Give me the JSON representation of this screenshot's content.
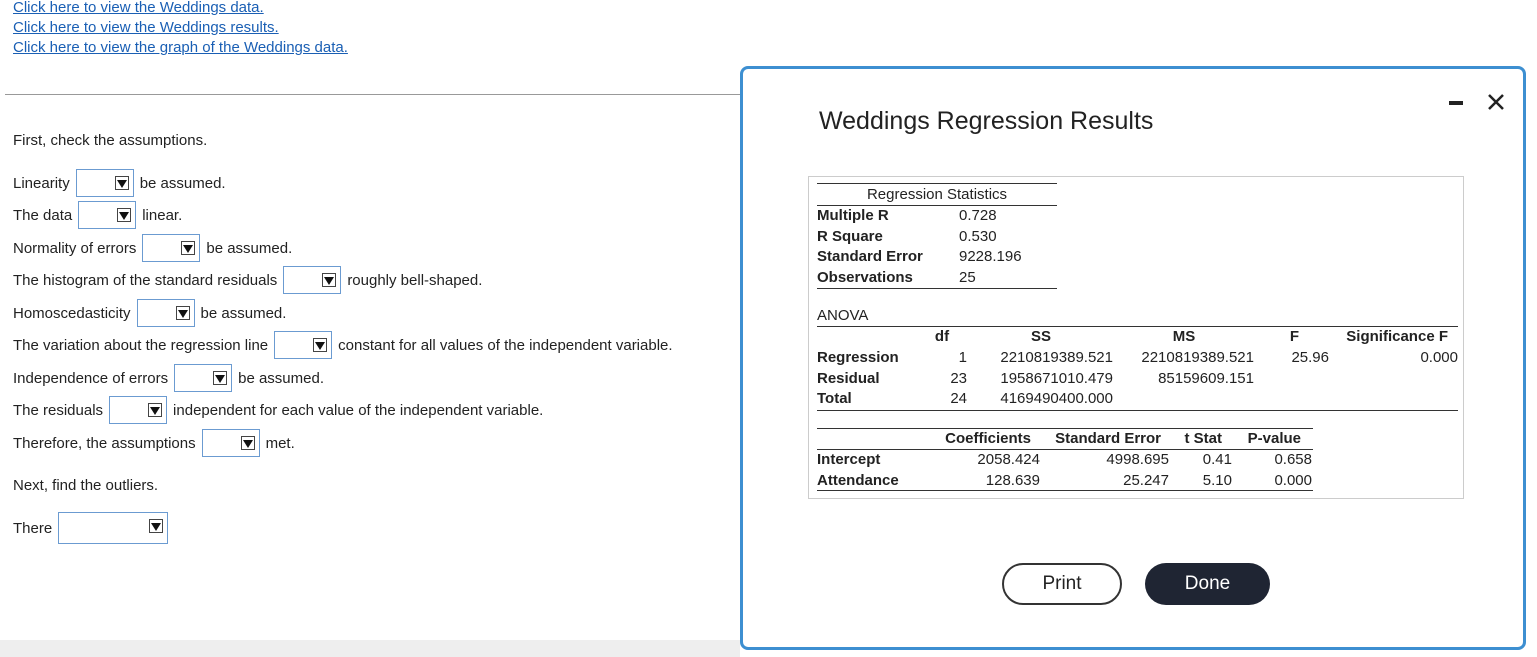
{
  "links": [
    "Click here to view the Weddings data.",
    "Click here to view the Weddings results.",
    "Click here to view the graph of the Weddings data."
  ],
  "questions": {
    "intro": "First, check the assumptions.",
    "items": [
      {
        "before": "Linearity",
        "after": "be assumed."
      },
      {
        "before": "The data",
        "after": "linear."
      },
      {
        "before": "Normality of errors",
        "after": "be assumed."
      },
      {
        "before": "The histogram of the standard residuals",
        "after": "roughly bell-shaped."
      },
      {
        "before": "Homoscedasticity",
        "after": "be assumed."
      },
      {
        "before": "The variation about the regression line",
        "after": "constant for all values of the independent variable."
      },
      {
        "before": "Independence of errors",
        "after": "be assumed."
      },
      {
        "before": "The residuals",
        "after": "independent for each value of the independent variable."
      },
      {
        "before": "Therefore, the assumptions",
        "after": "met."
      }
    ],
    "next": "Next, find the outliers.",
    "last": {
      "before": "There"
    }
  },
  "dialog": {
    "title": "Weddings Regression Results",
    "regression_statistics": {
      "header": "Regression Statistics",
      "rows": [
        [
          "Multiple R",
          "0.728"
        ],
        [
          "R Square",
          "0.530"
        ],
        [
          "Standard Error",
          "9228.196"
        ],
        [
          "Observations",
          "25"
        ]
      ]
    },
    "anova": {
      "label": "ANOVA",
      "columns": [
        "df",
        "SS",
        "MS",
        "F",
        "Significance F"
      ],
      "rows": [
        [
          "Regression",
          "1",
          "2210819389.521",
          "2210819389.521",
          "25.96",
          "0.000"
        ],
        [
          "Residual",
          "23",
          "1958671010.479",
          "85159609.151"
        ],
        [
          "Total",
          "24",
          "4169490400.000"
        ]
      ]
    },
    "coefficients": {
      "columns": [
        "Coefficients",
        "Standard Error",
        "t Stat",
        "P-value"
      ],
      "rows": [
        [
          "Intercept",
          "2058.424",
          "4998.695",
          "0.41",
          "0.658"
        ],
        [
          "Attendance",
          "128.639",
          "25.247",
          "5.10",
          "0.000"
        ]
      ]
    },
    "buttons": [
      "Print",
      "Done"
    ]
  }
}
